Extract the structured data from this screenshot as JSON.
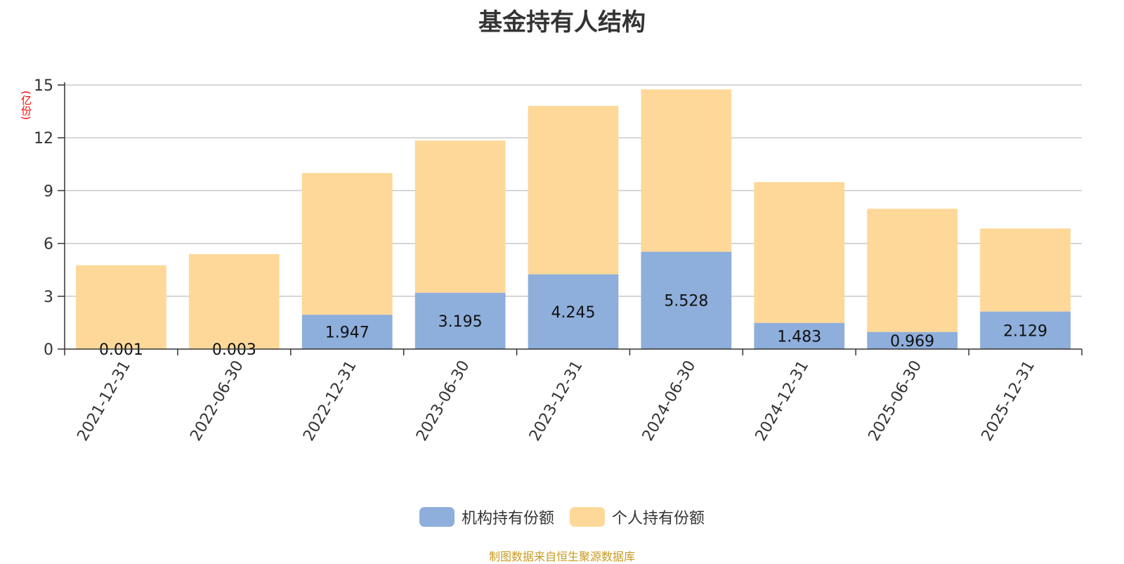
{
  "title": "基金持有人结构",
  "unit": "(亿份)",
  "source": "制图数据来自恒生聚源数据库",
  "colors": {
    "institutional": "#8eaedb",
    "individual": "#fdd898",
    "grid": "#c8c8c8",
    "axis": "#333333"
  },
  "chart_data": {
    "type": "bar",
    "stacked": true,
    "title": "基金持有人结构",
    "ylabel": "(亿份)",
    "ylim": [
      0,
      15
    ],
    "yticks": [
      0,
      3,
      6,
      9,
      12,
      15
    ],
    "categories": [
      "2021-12-31",
      "2022-06-30",
      "2022-12-31",
      "2023-06-30",
      "2023-12-31",
      "2024-06-30",
      "2024-12-31",
      "2025-06-30",
      "2025-12-31"
    ],
    "series": [
      {
        "name": "机构持有份额",
        "values": [
          0.001,
          0.003,
          1.947,
          3.195,
          4.245,
          5.528,
          1.483,
          0.969,
          2.129
        ],
        "labels": [
          "0.001",
          "0.003",
          "1.947",
          "3.195",
          "4.245",
          "5.528",
          "1.483",
          "0.969",
          "2.129"
        ]
      },
      {
        "name": "个人持有份额",
        "values": [
          4.76,
          5.39,
          8.05,
          8.65,
          9.57,
          9.22,
          8.0,
          7.0,
          4.72
        ]
      }
    ],
    "legend_position": "bottom-center"
  }
}
